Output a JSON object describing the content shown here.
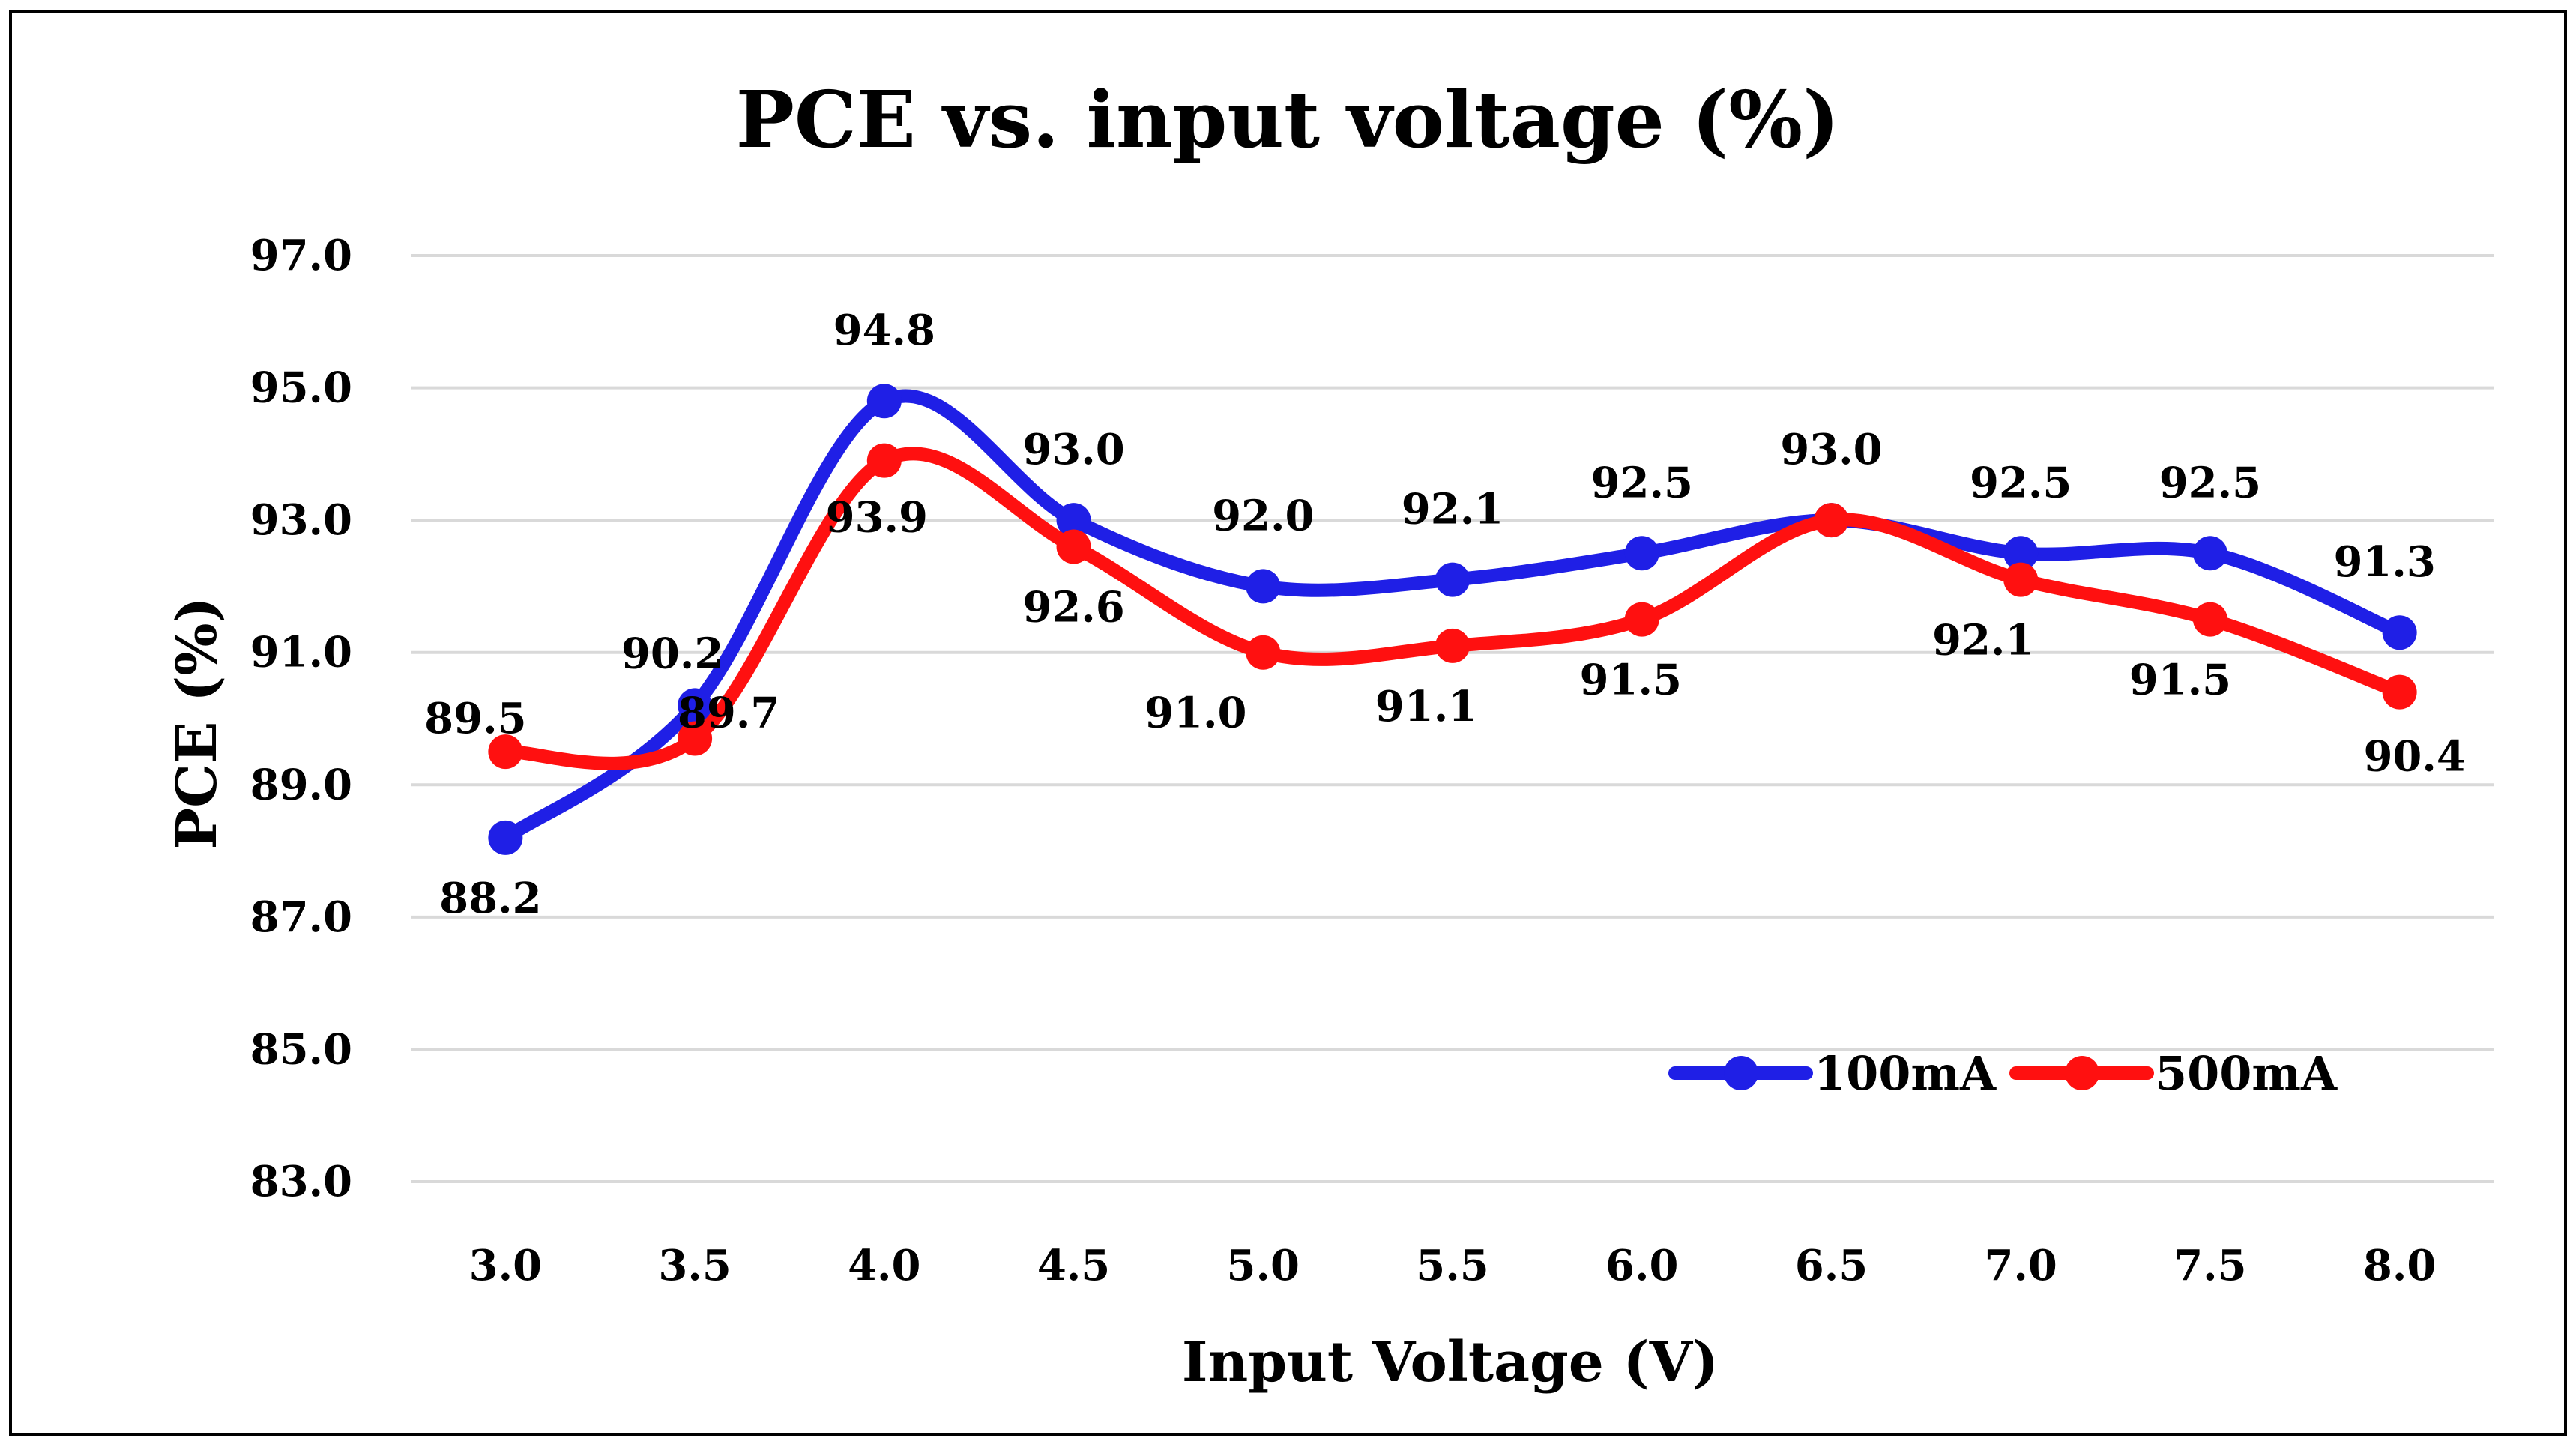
{
  "chart_data": {
    "type": "line",
    "title": "PCE vs. input voltage (%)",
    "xlabel": "Input Voltage (V)",
    "ylabel": "PCE (%)",
    "categories": [
      "3.0",
      "3.5",
      "4.0",
      "4.5",
      "5.0",
      "5.5",
      "6.0",
      "6.5",
      "7.0",
      "7.5",
      "8.0"
    ],
    "y_ticks": [
      "83.0",
      "85.0",
      "87.0",
      "89.0",
      "91.0",
      "93.0",
      "95.0",
      "97.0"
    ],
    "ylim": [
      83,
      97
    ],
    "grid": true,
    "legend_position": "bottom-right",
    "smooth": true,
    "series": [
      {
        "name": "100mA",
        "color": "#1f1fe6",
        "values": [
          88.2,
          90.2,
          94.8,
          93.0,
          92.0,
          92.1,
          92.5,
          93.0,
          92.5,
          92.5,
          91.3
        ],
        "labels": [
          "88.2",
          "90.2",
          "94.8",
          "93.0",
          "92.0",
          "92.1",
          "92.5",
          "93.0",
          "92.5",
          "92.5",
          "91.3"
        ]
      },
      {
        "name": "500mA",
        "color": "#ff1010",
        "values": [
          89.5,
          89.7,
          93.9,
          92.6,
          91.0,
          91.1,
          91.5,
          93.0,
          92.1,
          91.5,
          90.4
        ],
        "labels": [
          "89.5",
          "89.7",
          "93.9",
          "92.6",
          "91.0",
          "91.1",
          "91.5",
          "",
          "92.1",
          "91.5",
          "90.4"
        ]
      }
    ]
  }
}
